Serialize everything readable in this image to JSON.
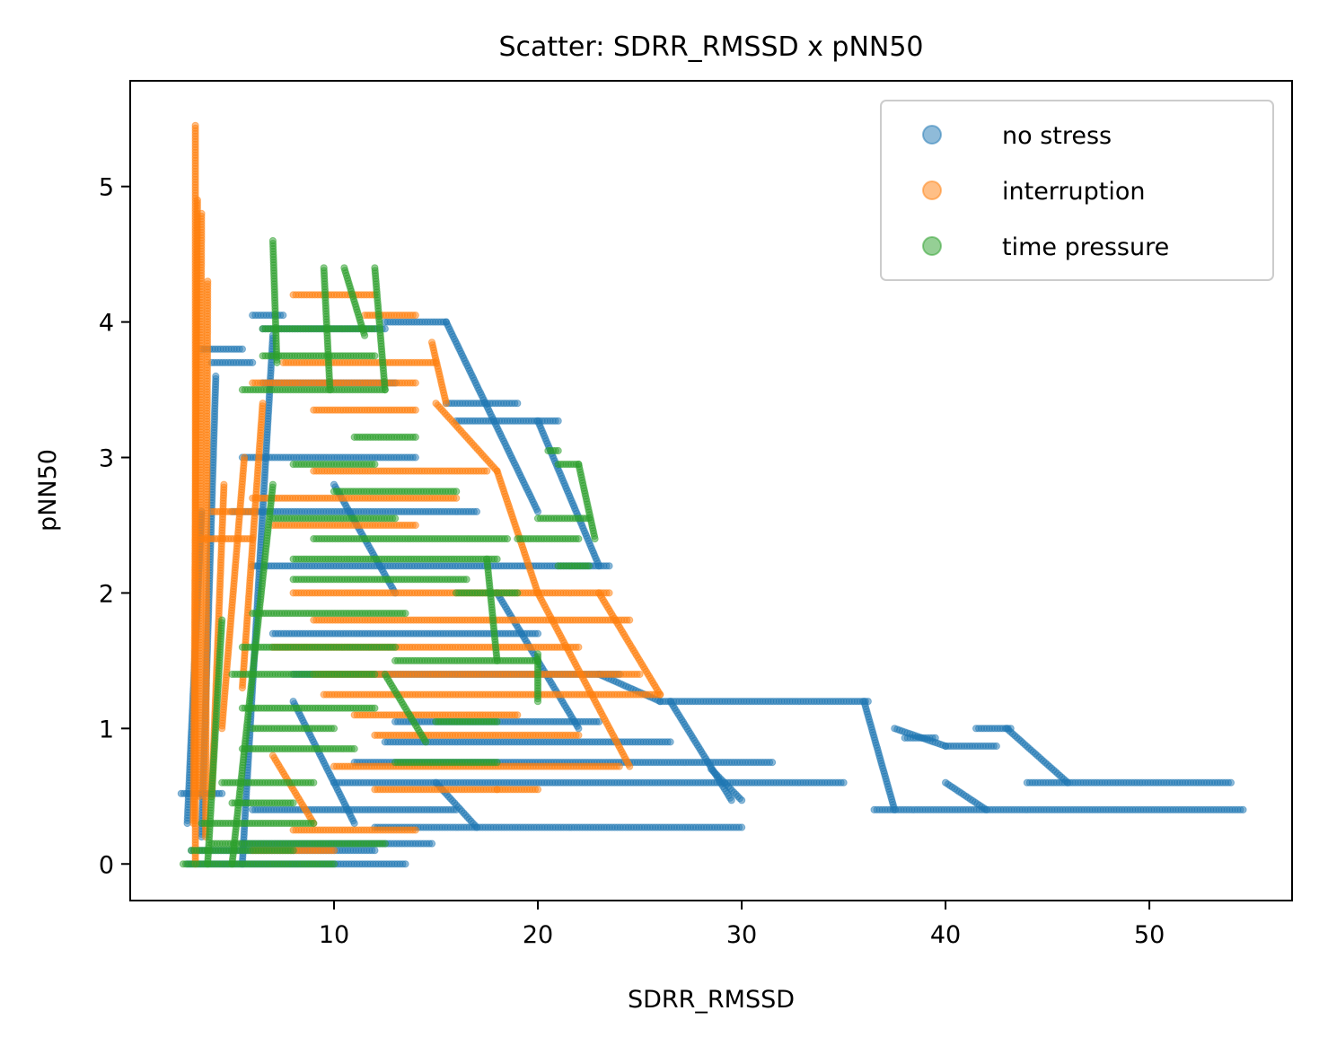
{
  "chart_data": {
    "type": "scatter",
    "title": "Scatter: SDRR_RMSSD x pNN50",
    "xlabel": "SDRR_RMSSD",
    "ylabel": "pNN50",
    "xlim": [
      0,
      57
    ],
    "ylim": [
      -0.27,
      5.78
    ],
    "xticks": [
      10,
      20,
      30,
      40,
      50
    ],
    "yticks": [
      0,
      1,
      2,
      3,
      4,
      5
    ],
    "grid": false,
    "legend_position": "top-right",
    "marker_alpha": 0.5,
    "series": [
      {
        "name": "no stress",
        "color": "#1f77b4",
        "segments": [
          [
            [
              2.5,
              0.52
            ],
            [
              4.5,
              0.52
            ]
          ],
          [
            [
              2.8,
              0.0
            ],
            [
              13.5,
              0.0
            ]
          ],
          [
            [
              3.0,
              0.1
            ],
            [
              12.0,
              0.1
            ]
          ],
          [
            [
              5.5,
              0.15
            ],
            [
              14.8,
              0.15
            ]
          ],
          [
            [
              12.0,
              0.27
            ],
            [
              30.0,
              0.27
            ]
          ],
          [
            [
              6.0,
              0.4
            ],
            [
              16.0,
              0.4
            ]
          ],
          [
            [
              10.0,
              0.6
            ],
            [
              35.0,
              0.6
            ]
          ],
          [
            [
              11.0,
              0.75
            ],
            [
              31.5,
              0.75
            ]
          ],
          [
            [
              12.5,
              0.9
            ],
            [
              26.5,
              0.9
            ]
          ],
          [
            [
              13.0,
              1.05
            ],
            [
              23.0,
              1.05
            ]
          ],
          [
            [
              26.0,
              1.2
            ],
            [
              36.2,
              1.2
            ]
          ],
          [
            [
              36.5,
              0.4
            ],
            [
              54.6,
              0.4
            ]
          ],
          [
            [
              44.0,
              0.6
            ],
            [
              54.0,
              0.6
            ]
          ],
          [
            [
              41.5,
              1.0
            ],
            [
              43.2,
              1.0
            ]
          ],
          [
            [
              40.0,
              0.87
            ],
            [
              42.5,
              0.87
            ]
          ],
          [
            [
              38.0,
              0.93
            ],
            [
              39.5,
              0.93
            ]
          ],
          [
            [
              8.0,
              1.4
            ],
            [
              24.0,
              1.4
            ]
          ],
          [
            [
              7.0,
              1.7
            ],
            [
              20.0,
              1.7
            ]
          ],
          [
            [
              6.0,
              2.2
            ],
            [
              23.5,
              2.2
            ]
          ],
          [
            [
              5.0,
              2.6
            ],
            [
              17.0,
              2.6
            ]
          ],
          [
            [
              5.5,
              3.0
            ],
            [
              14.0,
              3.0
            ]
          ],
          [
            [
              15.5,
              3.4
            ],
            [
              19.0,
              3.4
            ]
          ],
          [
            [
              16.0,
              3.27
            ],
            [
              21.0,
              3.27
            ]
          ],
          [
            [
              6.5,
              3.55
            ],
            [
              13.0,
              3.55
            ]
          ],
          [
            [
              12.5,
              4.0
            ],
            [
              15.5,
              4.0
            ]
          ],
          [
            [
              6.5,
              3.95
            ],
            [
              12.5,
              3.95
            ]
          ],
          [
            [
              6.0,
              4.05
            ],
            [
              7.5,
              4.05
            ]
          ],
          [
            [
              3.5,
              3.8
            ],
            [
              5.5,
              3.8
            ]
          ],
          [
            [
              4.0,
              3.7
            ],
            [
              6.0,
              3.7
            ]
          ],
          [
            [
              2.8,
              0.3
            ],
            [
              3.5,
              2.6
            ]
          ],
          [
            [
              3.5,
              0.2
            ],
            [
              4.2,
              3.6
            ]
          ],
          [
            [
              5.5,
              0.0
            ],
            [
              7.0,
              3.9
            ]
          ],
          [
            [
              15.5,
              4.0
            ],
            [
              20.0,
              2.6
            ]
          ],
          [
            [
              20.0,
              3.27
            ],
            [
              23.0,
              2.2
            ]
          ],
          [
            [
              23.0,
              1.4
            ],
            [
              26.0,
              1.2
            ]
          ],
          [
            [
              26.5,
              1.2
            ],
            [
              29.5,
              0.47
            ]
          ],
          [
            [
              30.0,
              0.47
            ],
            [
              28.5,
              0.7
            ]
          ],
          [
            [
              36.0,
              1.2
            ],
            [
              37.5,
              0.4
            ]
          ],
          [
            [
              37.5,
              1.0
            ],
            [
              40.0,
              0.87
            ]
          ],
          [
            [
              43.0,
              1.0
            ],
            [
              46.0,
              0.6
            ]
          ],
          [
            [
              40.0,
              0.6
            ],
            [
              42.0,
              0.4
            ]
          ],
          [
            [
              15.0,
              0.6
            ],
            [
              17.0,
              0.27
            ]
          ],
          [
            [
              18.0,
              2.0
            ],
            [
              22.0,
              1.0
            ]
          ],
          [
            [
              10.0,
              2.8
            ],
            [
              13.0,
              2.0
            ]
          ],
          [
            [
              8.0,
              1.2
            ],
            [
              11.0,
              0.3
            ]
          ]
        ]
      },
      {
        "name": "interruption",
        "color": "#ff7f0e",
        "segments": [
          [
            [
              3.2,
              0.0
            ],
            [
              3.2,
              5.45
            ]
          ],
          [
            [
              3.1,
              0.3
            ],
            [
              3.3,
              4.9
            ]
          ],
          [
            [
              3.4,
              0.5
            ],
            [
              3.5,
              4.8
            ]
          ],
          [
            [
              3.7,
              0.2
            ],
            [
              3.8,
              4.3
            ]
          ],
          [
            [
              4.0,
              0.5
            ],
            [
              4.6,
              2.8
            ]
          ],
          [
            [
              4.5,
              1.0
            ],
            [
              5.6,
              3.0
            ]
          ],
          [
            [
              5.5,
              1.3
            ],
            [
              6.5,
              3.4
            ]
          ],
          [
            [
              4.0,
              2.6
            ],
            [
              6.0,
              2.6
            ]
          ],
          [
            [
              3.5,
              2.4
            ],
            [
              6.0,
              2.4
            ]
          ],
          [
            [
              6.0,
              3.55
            ],
            [
              14.0,
              3.55
            ]
          ],
          [
            [
              7.5,
              3.7
            ],
            [
              15.0,
              3.7
            ]
          ],
          [
            [
              9.0,
              3.35
            ],
            [
              14.0,
              3.35
            ]
          ],
          [
            [
              8.0,
              4.2
            ],
            [
              12.0,
              4.2
            ]
          ],
          [
            [
              11.5,
              4.05
            ],
            [
              14.0,
              4.05
            ]
          ],
          [
            [
              14.8,
              3.85
            ],
            [
              15.5,
              3.4
            ]
          ],
          [
            [
              9.0,
              2.9
            ],
            [
              17.5,
              2.9
            ]
          ],
          [
            [
              6.0,
              2.7
            ],
            [
              16.0,
              2.7
            ]
          ],
          [
            [
              7.0,
              2.5
            ],
            [
              14.0,
              2.5
            ]
          ],
          [
            [
              8.0,
              2.0
            ],
            [
              23.5,
              2.0
            ]
          ],
          [
            [
              9.0,
              1.8
            ],
            [
              24.5,
              1.8
            ]
          ],
          [
            [
              7.0,
              1.6
            ],
            [
              22.0,
              1.6
            ]
          ],
          [
            [
              9.0,
              1.4
            ],
            [
              25.0,
              1.4
            ]
          ],
          [
            [
              9.5,
              1.25
            ],
            [
              26.0,
              1.25
            ]
          ],
          [
            [
              11.0,
              1.1
            ],
            [
              19.0,
              1.1
            ]
          ],
          [
            [
              12.0,
              0.95
            ],
            [
              22.0,
              0.95
            ]
          ],
          [
            [
              10.0,
              0.72
            ],
            [
              24.0,
              0.72
            ]
          ],
          [
            [
              12.0,
              0.55
            ],
            [
              18.0,
              0.55
            ]
          ],
          [
            [
              18.0,
              0.55
            ],
            [
              20.0,
              0.55
            ]
          ],
          [
            [
              8.0,
              0.25
            ],
            [
              14.0,
              0.25
            ]
          ],
          [
            [
              6.0,
              0.1
            ],
            [
              10.0,
              0.1
            ]
          ],
          [
            [
              23.0,
              2.0
            ],
            [
              26.0,
              1.25
            ]
          ],
          [
            [
              18.0,
              2.9
            ],
            [
              20.0,
              2.0
            ]
          ],
          [
            [
              20.0,
              2.0
            ],
            [
              24.5,
              0.72
            ]
          ],
          [
            [
              15.0,
              3.4
            ],
            [
              18.0,
              2.9
            ]
          ],
          [
            [
              7.0,
              0.8
            ],
            [
              9.0,
              0.3
            ]
          ]
        ]
      },
      {
        "name": "time pressure",
        "color": "#2ca02c",
        "segments": [
          [
            [
              2.6,
              0.0
            ],
            [
              10.0,
              0.0
            ]
          ],
          [
            [
              3.0,
              0.1
            ],
            [
              8.0,
              0.1
            ]
          ],
          [
            [
              4.0,
              0.15
            ],
            [
              12.5,
              0.15
            ]
          ],
          [
            [
              3.5,
              0.3
            ],
            [
              9.0,
              0.3
            ]
          ],
          [
            [
              5.0,
              0.45
            ],
            [
              8.0,
              0.45
            ]
          ],
          [
            [
              4.5,
              0.6
            ],
            [
              9.0,
              0.6
            ]
          ],
          [
            [
              5.5,
              0.85
            ],
            [
              11.0,
              0.85
            ]
          ],
          [
            [
              6.0,
              1.0
            ],
            [
              10.0,
              1.0
            ]
          ],
          [
            [
              5.5,
              1.15
            ],
            [
              12.0,
              1.15
            ]
          ],
          [
            [
              5.0,
              1.4
            ],
            [
              12.0,
              1.4
            ]
          ],
          [
            [
              5.5,
              1.6
            ],
            [
              13.0,
              1.6
            ]
          ],
          [
            [
              6.0,
              1.85
            ],
            [
              13.5,
              1.85
            ]
          ],
          [
            [
              8.0,
              2.1
            ],
            [
              16.5,
              2.1
            ]
          ],
          [
            [
              8.0,
              2.25
            ],
            [
              18.0,
              2.25
            ]
          ],
          [
            [
              9.0,
              2.4
            ],
            [
              18.5,
              2.4
            ]
          ],
          [
            [
              7.0,
              2.55
            ],
            [
              13.0,
              2.55
            ]
          ],
          [
            [
              10.0,
              2.75
            ],
            [
              16.0,
              2.75
            ]
          ],
          [
            [
              8.0,
              2.95
            ],
            [
              12.0,
              2.95
            ]
          ],
          [
            [
              11.0,
              3.15
            ],
            [
              14.0,
              3.15
            ]
          ],
          [
            [
              5.5,
              3.5
            ],
            [
              12.5,
              3.5
            ]
          ],
          [
            [
              6.5,
              3.75
            ],
            [
              12.0,
              3.75
            ]
          ],
          [
            [
              6.5,
              3.95
            ],
            [
              12.0,
              3.95
            ]
          ],
          [
            [
              7.0,
              4.6
            ],
            [
              7.2,
              3.7
            ]
          ],
          [
            [
              10.5,
              4.4
            ],
            [
              11.5,
              3.9
            ]
          ],
          [
            [
              12.0,
              4.4
            ],
            [
              12.5,
              3.5
            ]
          ],
          [
            [
              13.0,
              0.75
            ],
            [
              18.0,
              0.75
            ]
          ],
          [
            [
              15.0,
              1.05
            ],
            [
              18.0,
              1.05
            ]
          ],
          [
            [
              13.0,
              1.5
            ],
            [
              20.0,
              1.5
            ]
          ],
          [
            [
              16.0,
              2.0
            ],
            [
              19.0,
              2.0
            ]
          ],
          [
            [
              19.0,
              2.4
            ],
            [
              22.0,
              2.4
            ]
          ],
          [
            [
              20.0,
              2.55
            ],
            [
              22.5,
              2.55
            ]
          ],
          [
            [
              21.0,
              2.95
            ],
            [
              22.0,
              2.95
            ]
          ],
          [
            [
              20.5,
              3.05
            ],
            [
              21.0,
              3.05
            ]
          ],
          [
            [
              21.0,
              2.2
            ],
            [
              22.5,
              2.2
            ]
          ],
          [
            [
              20.0,
              1.55
            ],
            [
              20.0,
              1.2
            ]
          ],
          [
            [
              5.0,
              0.0
            ],
            [
              7.0,
              2.8
            ]
          ],
          [
            [
              3.8,
              0.0
            ],
            [
              4.5,
              1.8
            ]
          ],
          [
            [
              12.5,
              1.4
            ],
            [
              14.5,
              0.9
            ]
          ],
          [
            [
              17.5,
              2.25
            ],
            [
              18.0,
              1.5
            ]
          ],
          [
            [
              22.0,
              2.95
            ],
            [
              22.8,
              2.4
            ]
          ],
          [
            [
              9.5,
              4.4
            ],
            [
              9.8,
              3.5
            ]
          ]
        ]
      }
    ]
  }
}
